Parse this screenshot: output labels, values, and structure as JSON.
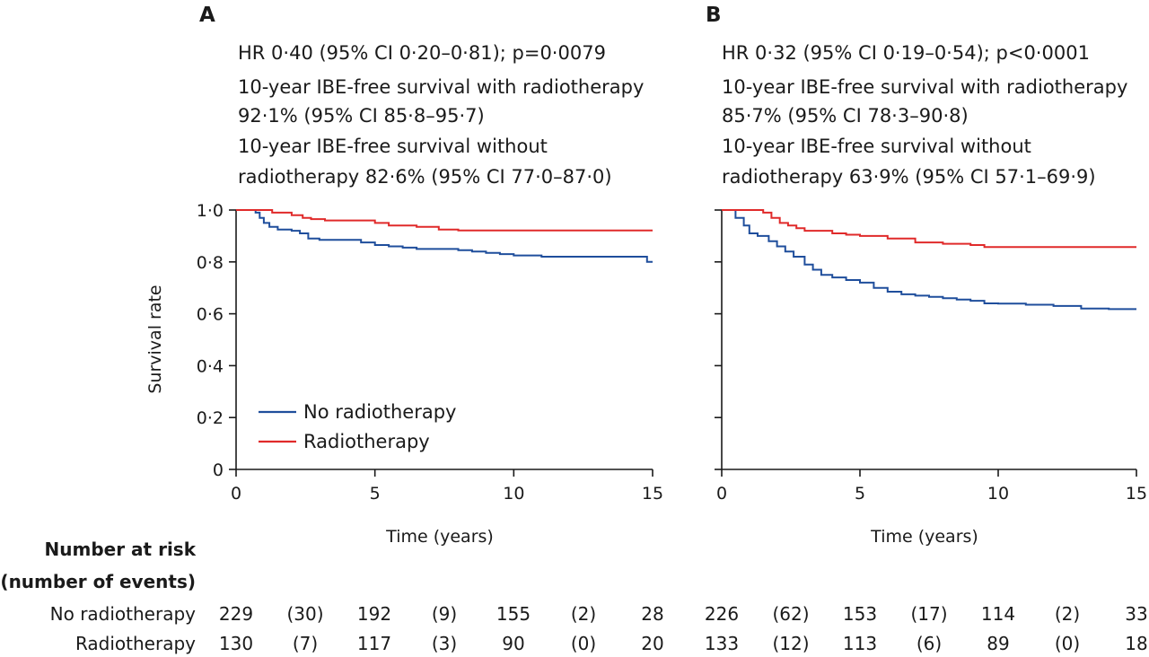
{
  "chart_data": [
    {
      "type": "line",
      "panel_label": "A",
      "annotations": [
        "HR 0·40 (95% CI 0·20–0·81); p=0·0079",
        "10-year IBE-free survival with radiotherapy",
        "92·1% (95% CI 85·8–95·7)",
        "10-year IBE-free survival without",
        "radiotherapy 82·6% (95% CI 77·0–87·0)"
      ],
      "xlabel": "Time (years)",
      "ylabel": "Survival rate",
      "xlim": [
        0,
        15
      ],
      "ylim": [
        0,
        1
      ],
      "xticks": [
        0,
        5,
        10,
        15
      ],
      "xtick_labels": [
        "0",
        "5",
        "10",
        "15"
      ],
      "yticks": [
        0,
        0.2,
        0.4,
        0.6,
        0.8,
        1.0
      ],
      "ytick_labels": [
        "0",
        "0·2",
        "0·4",
        "0·6",
        "0·8",
        "1·0"
      ],
      "legend": [
        "No radiotherapy",
        "Radiotherapy"
      ],
      "series": [
        {
          "name": "No radiotherapy",
          "color": "#1f4e9c",
          "x": [
            0,
            0.7,
            0.85,
            1.0,
            1.2,
            1.5,
            2.0,
            2.3,
            2.6,
            3.0,
            4.0,
            4.5,
            5.0,
            5.5,
            6.0,
            6.5,
            7.5,
            8.0,
            8.5,
            9.0,
            9.5,
            10.0,
            11.0,
            12.0,
            14.5,
            14.8,
            15.0
          ],
          "values": [
            1.0,
            0.99,
            0.97,
            0.95,
            0.935,
            0.925,
            0.92,
            0.91,
            0.89,
            0.885,
            0.885,
            0.875,
            0.865,
            0.86,
            0.855,
            0.85,
            0.85,
            0.845,
            0.84,
            0.835,
            0.83,
            0.825,
            0.82,
            0.82,
            0.82,
            0.8,
            0.8
          ]
        },
        {
          "name": "Radiotherapy",
          "color": "#e02a2a",
          "x": [
            0,
            0.8,
            1.3,
            2.0,
            2.4,
            2.7,
            3.2,
            4.5,
            5.0,
            5.5,
            6.5,
            7.3,
            8.0,
            10.0,
            15.0
          ],
          "values": [
            1.0,
            1.0,
            0.99,
            0.98,
            0.97,
            0.965,
            0.96,
            0.96,
            0.95,
            0.94,
            0.935,
            0.925,
            0.921,
            0.921,
            0.921
          ]
        }
      ]
    },
    {
      "type": "line",
      "panel_label": "B",
      "annotations": [
        "HR 0·32 (95% CI 0·19–0·54); p<0·0001",
        "10-year IBE-free survival with radiotherapy",
        "85·7% (95% CI 78·3–90·8)",
        "10-year IBE-free survival without",
        "radiotherapy 63·9% (95% CI 57·1–69·9)"
      ],
      "xlabel": "Time (years)",
      "ylabel": "",
      "xlim": [
        0,
        15
      ],
      "ylim": [
        0,
        1
      ],
      "xticks": [
        0,
        5,
        10,
        15
      ],
      "xtick_labels": [
        "0",
        "5",
        "10",
        "15"
      ],
      "yticks": [
        0,
        0.2,
        0.4,
        0.6,
        0.8,
        1.0
      ],
      "ytick_labels": [],
      "legend": [],
      "series": [
        {
          "name": "No radiotherapy",
          "color": "#1f4e9c",
          "x": [
            0,
            0.5,
            0.8,
            1.0,
            1.3,
            1.7,
            2.0,
            2.3,
            2.6,
            3.0,
            3.3,
            3.6,
            4.0,
            4.5,
            5.0,
            5.5,
            6.0,
            6.5,
            7.0,
            7.5,
            8.0,
            8.5,
            9.0,
            9.5,
            10.0,
            11.0,
            12.0,
            13.0,
            14.0,
            15.0
          ],
          "values": [
            1.0,
            0.97,
            0.94,
            0.91,
            0.9,
            0.88,
            0.86,
            0.84,
            0.82,
            0.79,
            0.77,
            0.75,
            0.74,
            0.73,
            0.72,
            0.7,
            0.685,
            0.675,
            0.67,
            0.665,
            0.66,
            0.655,
            0.65,
            0.64,
            0.639,
            0.635,
            0.63,
            0.62,
            0.618,
            0.618
          ]
        },
        {
          "name": "Radiotherapy",
          "color": "#e02a2a",
          "x": [
            0,
            1.5,
            1.8,
            2.1,
            2.4,
            2.7,
            3.0,
            3.5,
            4.0,
            4.5,
            5.0,
            6.0,
            7.0,
            8.0,
            9.0,
            9.5,
            10.0,
            15.0
          ],
          "values": [
            1.0,
            0.99,
            0.97,
            0.95,
            0.94,
            0.93,
            0.92,
            0.92,
            0.91,
            0.905,
            0.9,
            0.89,
            0.875,
            0.87,
            0.865,
            0.857,
            0.857,
            0.857
          ]
        }
      ]
    }
  ],
  "risk_table": {
    "title_line1": "Number at risk",
    "title_line2": "(number of events)",
    "rows": [
      {
        "label": "No radiotherapy",
        "panel_a": [
          "229",
          "(30)",
          "192",
          "(9)",
          "155",
          "(2)",
          "28"
        ],
        "panel_b": [
          "226",
          "(62)",
          "153",
          "(17)",
          "114",
          "(2)",
          "33"
        ]
      },
      {
        "label": "Radiotherapy",
        "panel_a": [
          "130",
          "(7)",
          "117",
          "(3)",
          "90",
          "(0)",
          "20"
        ],
        "panel_b": [
          "133",
          "(12)",
          "113",
          "(6)",
          "89",
          "(0)",
          "18"
        ]
      }
    ]
  }
}
